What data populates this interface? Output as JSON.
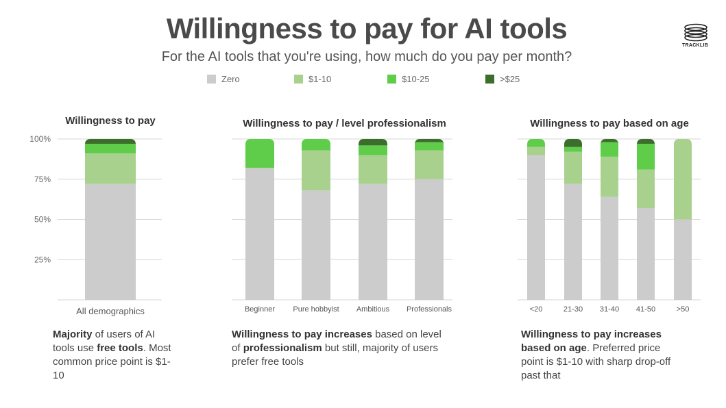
{
  "title": "Willingness to pay for AI tools",
  "subtitle": "For the AI tools that you're using, how much do you pay per month?",
  "logo_text": "TRACKLIB",
  "legend": [
    {
      "label": "Zero",
      "color": "#cccccc"
    },
    {
      "label": "$1-10",
      "color": "#a9d18e"
    },
    {
      "label": "$10-25",
      "color": "#5fcc4a"
    },
    {
      "label": ">$25",
      "color": "#3b6e2a"
    }
  ],
  "chart_data": [
    {
      "type": "bar",
      "stacked": true,
      "title": "Willingness to pay",
      "categories": [
        "All demographics"
      ],
      "series": [
        {
          "name": "Zero",
          "values": [
            72
          ]
        },
        {
          "name": "$1-10",
          "values": [
            19
          ]
        },
        {
          "name": "$10-25",
          "values": [
            6
          ]
        },
        {
          "name": ">$25",
          "values": [
            3
          ]
        }
      ],
      "ylim": [
        0,
        100
      ],
      "yticks": [
        "100%",
        "75%",
        "50%",
        "25%"
      ]
    },
    {
      "type": "bar",
      "stacked": true,
      "title": "Willingness to pay / level professionalism",
      "categories": [
        "Beginner",
        "Pure hobbyist",
        "Ambitious",
        "Professionals"
      ],
      "series": [
        {
          "name": "Zero",
          "values": [
            82,
            68,
            72,
            75
          ]
        },
        {
          "name": "$1-10",
          "values": [
            0,
            25,
            18,
            18
          ]
        },
        {
          "name": "$10-25",
          "values": [
            18,
            7,
            6,
            5
          ]
        },
        {
          "name": ">$25",
          "values": [
            0,
            0,
            4,
            2
          ]
        }
      ],
      "ylim": [
        0,
        100
      ]
    },
    {
      "type": "bar",
      "stacked": true,
      "title": "Willingness to pay based on age",
      "categories": [
        "<20",
        "21-30",
        "31-40",
        "41-50",
        ">50"
      ],
      "series": [
        {
          "name": "Zero",
          "values": [
            90,
            72,
            64,
            57,
            50
          ]
        },
        {
          "name": "$1-10",
          "values": [
            5,
            20,
            25,
            24,
            50
          ]
        },
        {
          "name": "$10-25",
          "values": [
            5,
            3,
            9,
            16,
            0
          ]
        },
        {
          "name": ">$25",
          "values": [
            0,
            5,
            2,
            3,
            0
          ]
        }
      ],
      "ylim": [
        0,
        100
      ]
    }
  ],
  "notes": [
    {
      "parts": [
        {
          "t": "Majority",
          "b": true
        },
        {
          "t": " of users of AI tools use ",
          "b": false
        },
        {
          "t": "free tools",
          "b": true
        },
        {
          "t": ". Most common price point is $1-10",
          "b": false
        }
      ]
    },
    {
      "parts": [
        {
          "t": "Willingness to pay increases",
          "b": true
        },
        {
          "t": " based on level of ",
          "b": false
        },
        {
          "t": "professionalism",
          "b": true
        },
        {
          "t": " but still, majority of users prefer free tools",
          "b": false
        }
      ]
    },
    {
      "parts": [
        {
          "t": "Willingness to pay increases based on age",
          "b": true
        },
        {
          "t": ". Preferred price point is $1-10 with sharp drop-off past that",
          "b": false
        }
      ]
    }
  ]
}
